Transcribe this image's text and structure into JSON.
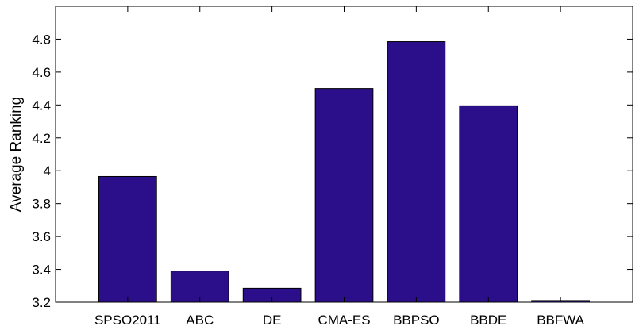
{
  "chart_data": {
    "type": "bar",
    "categories": [
      "SPSO2011",
      "ABC",
      "DE",
      "CMA-ES",
      "BBPSO",
      "BBDE",
      "BBFWA"
    ],
    "values": [
      3.965,
      3.39,
      3.285,
      4.5,
      4.785,
      4.395,
      3.21
    ],
    "xlabel": "",
    "ylabel": "Average Ranking",
    "ylim": [
      3.2,
      5.0
    ],
    "yticks": [
      3.2,
      3.4,
      3.6,
      3.8,
      4.0,
      4.2,
      4.4,
      4.6,
      4.8
    ],
    "ytick_labels": [
      "3.2",
      "3.4",
      "3.6",
      "3.8",
      "4",
      "4.2",
      "4.4",
      "4.6",
      "4.8"
    ],
    "grid": false,
    "bar_color": "#2b0f8a",
    "bar_edge_color": "#000000"
  }
}
